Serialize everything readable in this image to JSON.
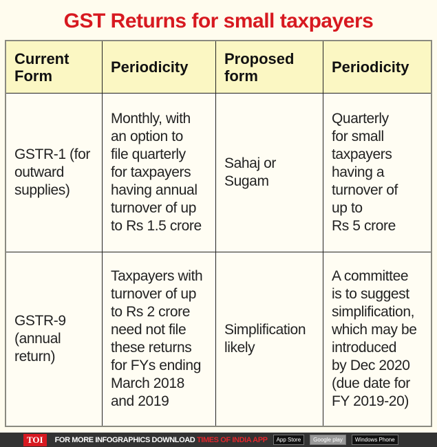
{
  "title": "GST Returns for small taxpayers",
  "headers": [
    "Current\nForm",
    "Periodicity",
    "Proposed\nform",
    "Periodicity"
  ],
  "rows": [
    [
      "GSTR-1 (for\noutward\nsupplies)",
      "Monthly, with\nan option to\nfile quarterly\nfor taxpayers\nhaving annual\nturnover of up\nto Rs 1.5 crore",
      "Sahaj or\nSugam",
      "Quarterly\nfor small\ntaxpayers\nhaving a\nturnover of\nup to\nRs 5 crore"
    ],
    [
      "GSTR-9\n(annual\nreturn)",
      "Taxpayers with\nturnover of up\nto Rs 2 crore\nneed not file\nthese returns\nfor FYs ending\nMarch 2018\nand 2019",
      "Simplification\nlikely",
      "A committee\nis to suggest\nsimplification,\nwhich may be\nintroduced\nby Dec 2020\n(due date for\nFY 2019-20)"
    ]
  ],
  "footer": {
    "logo": "TOI",
    "message": "FOR MORE  INFOGRAPHICS DOWNLOAD ",
    "app": "TIMES OF INDIA  APP",
    "app_store": "App Store",
    "google_play": "Google play",
    "windows_phone": "Windows Phone"
  }
}
